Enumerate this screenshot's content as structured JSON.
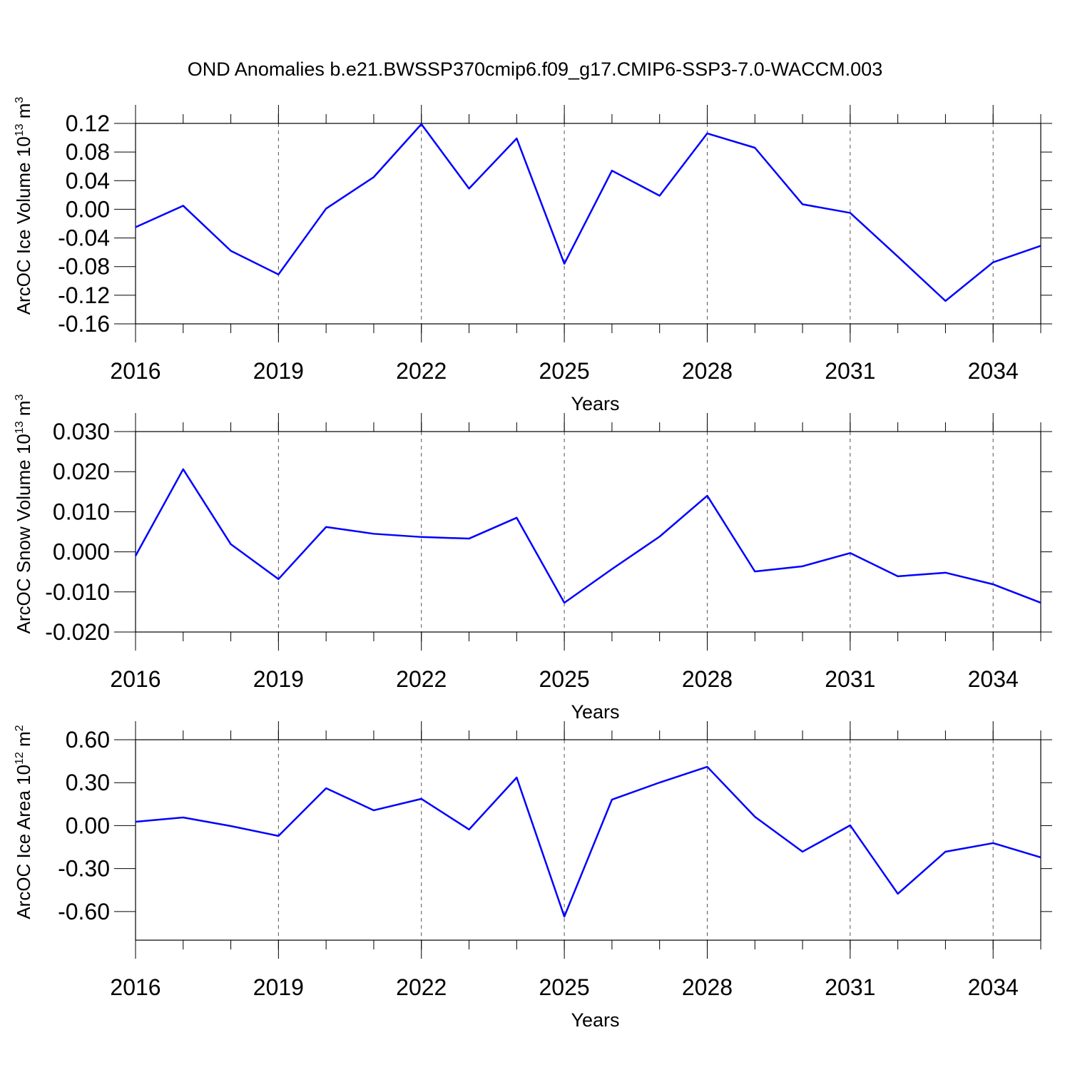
{
  "title": "OND Anomalies b.e21.BWSSP370cmip6.f09_g17.CMIP6-SSP3-7.0-WACCM.003",
  "chart_data": [
    {
      "type": "line",
      "ylabel": {
        "text": "ArcOC Ice Volume 10",
        "exponent": "13",
        "unit": " m",
        "unit_exponent": "3"
      },
      "xlabel": "Years",
      "x": [
        2016,
        2017,
        2018,
        2019,
        2020,
        2021,
        2022,
        2023,
        2024,
        2025,
        2026,
        2027,
        2028,
        2029,
        2030,
        2031,
        2032,
        2033,
        2034,
        2035
      ],
      "series": [
        {
          "color": "#0000ff",
          "values": [
            -0.025,
            0.005,
            -0.058,
            -0.091,
            0.001,
            0.045,
            0.119,
            0.029,
            0.099,
            -0.076,
            0.054,
            0.019,
            0.106,
            0.086,
            0.007,
            -0.005,
            -0.066,
            -0.128,
            -0.074,
            -0.051
          ]
        }
      ],
      "xlim": [
        2016,
        2035
      ],
      "xticks": [
        2016,
        2019,
        2022,
        2025,
        2028,
        2031,
        2034
      ],
      "ylim": [
        -0.16,
        0.12
      ],
      "yticks": [
        0.12,
        0.08,
        0.04,
        {
          "value": 0,
          "label": "0.00"
        },
        -0.04,
        -0.08,
        -0.12,
        -0.16
      ],
      "grid": "x"
    },
    {
      "type": "line",
      "ylabel": {
        "text": "ArcOC Snow Volume 10",
        "exponent": "13",
        "unit": " m",
        "unit_exponent": "3"
      },
      "xlabel": "Years",
      "x": [
        2016,
        2017,
        2018,
        2019,
        2020,
        2021,
        2022,
        2023,
        2024,
        2025,
        2026,
        2027,
        2028,
        2029,
        2030,
        2031,
        2032,
        2033,
        2034,
        2035
      ],
      "series": [
        {
          "color": "#0000ff",
          "values": [
            -0.001,
            0.0206,
            0.0019,
            -0.0068,
            0.0062,
            0.0045,
            0.0037,
            0.0033,
            0.0085,
            -0.0127,
            -0.0043,
            0.0038,
            0.014,
            -0.0049,
            -0.0036,
            -0.0003,
            -0.0061,
            -0.0052,
            -0.0081,
            -0.0127
          ]
        }
      ],
      "xlim": [
        2016,
        2035
      ],
      "xticks": [
        2016,
        2019,
        2022,
        2025,
        2028,
        2031,
        2034
      ],
      "ylim": [
        -0.02,
        0.03
      ],
      "yticks": [
        {
          "value": 0.03,
          "label": "0.030"
        },
        {
          "value": 0.02,
          "label": "0.020"
        },
        {
          "value": 0.01,
          "label": "0.010"
        },
        {
          "value": 0,
          "label": "0.000"
        },
        {
          "value": -0.01,
          "label": "-0.010"
        },
        {
          "value": -0.02,
          "label": "-0.020"
        }
      ],
      "grid": "x"
    },
    {
      "type": "line",
      "ylabel": {
        "text": "ArcOC Ice Area 10",
        "exponent": "12",
        "unit": " m",
        "unit_exponent": "2"
      },
      "xlabel": "Years",
      "x": [
        2016,
        2017,
        2018,
        2019,
        2020,
        2021,
        2022,
        2023,
        2024,
        2025,
        2026,
        2027,
        2028,
        2029,
        2030,
        2031,
        2032,
        2033,
        2034,
        2035
      ],
      "series": [
        {
          "color": "#0000ff",
          "values": [
            0.027,
            0.057,
            -0.003,
            -0.072,
            0.261,
            0.107,
            0.187,
            -0.027,
            0.336,
            -0.635,
            0.182,
            0.301,
            0.411,
            0.062,
            -0.182,
            0.002,
            -0.476,
            -0.182,
            -0.122,
            -0.222
          ]
        }
      ],
      "xlim": [
        2016,
        2035
      ],
      "xticks": [
        2016,
        2019,
        2022,
        2025,
        2028,
        2031,
        2034
      ],
      "ylim": [
        -0.8,
        0.6
      ],
      "yticks": [
        {
          "value": 0.6,
          "label": "0.60"
        },
        {
          "value": 0.3,
          "label": "0.30"
        },
        {
          "value": 0,
          "label": "0.00"
        },
        {
          "value": -0.3,
          "label": "-0.30"
        },
        {
          "value": -0.6,
          "label": "-0.60"
        }
      ],
      "grid": "x"
    }
  ]
}
